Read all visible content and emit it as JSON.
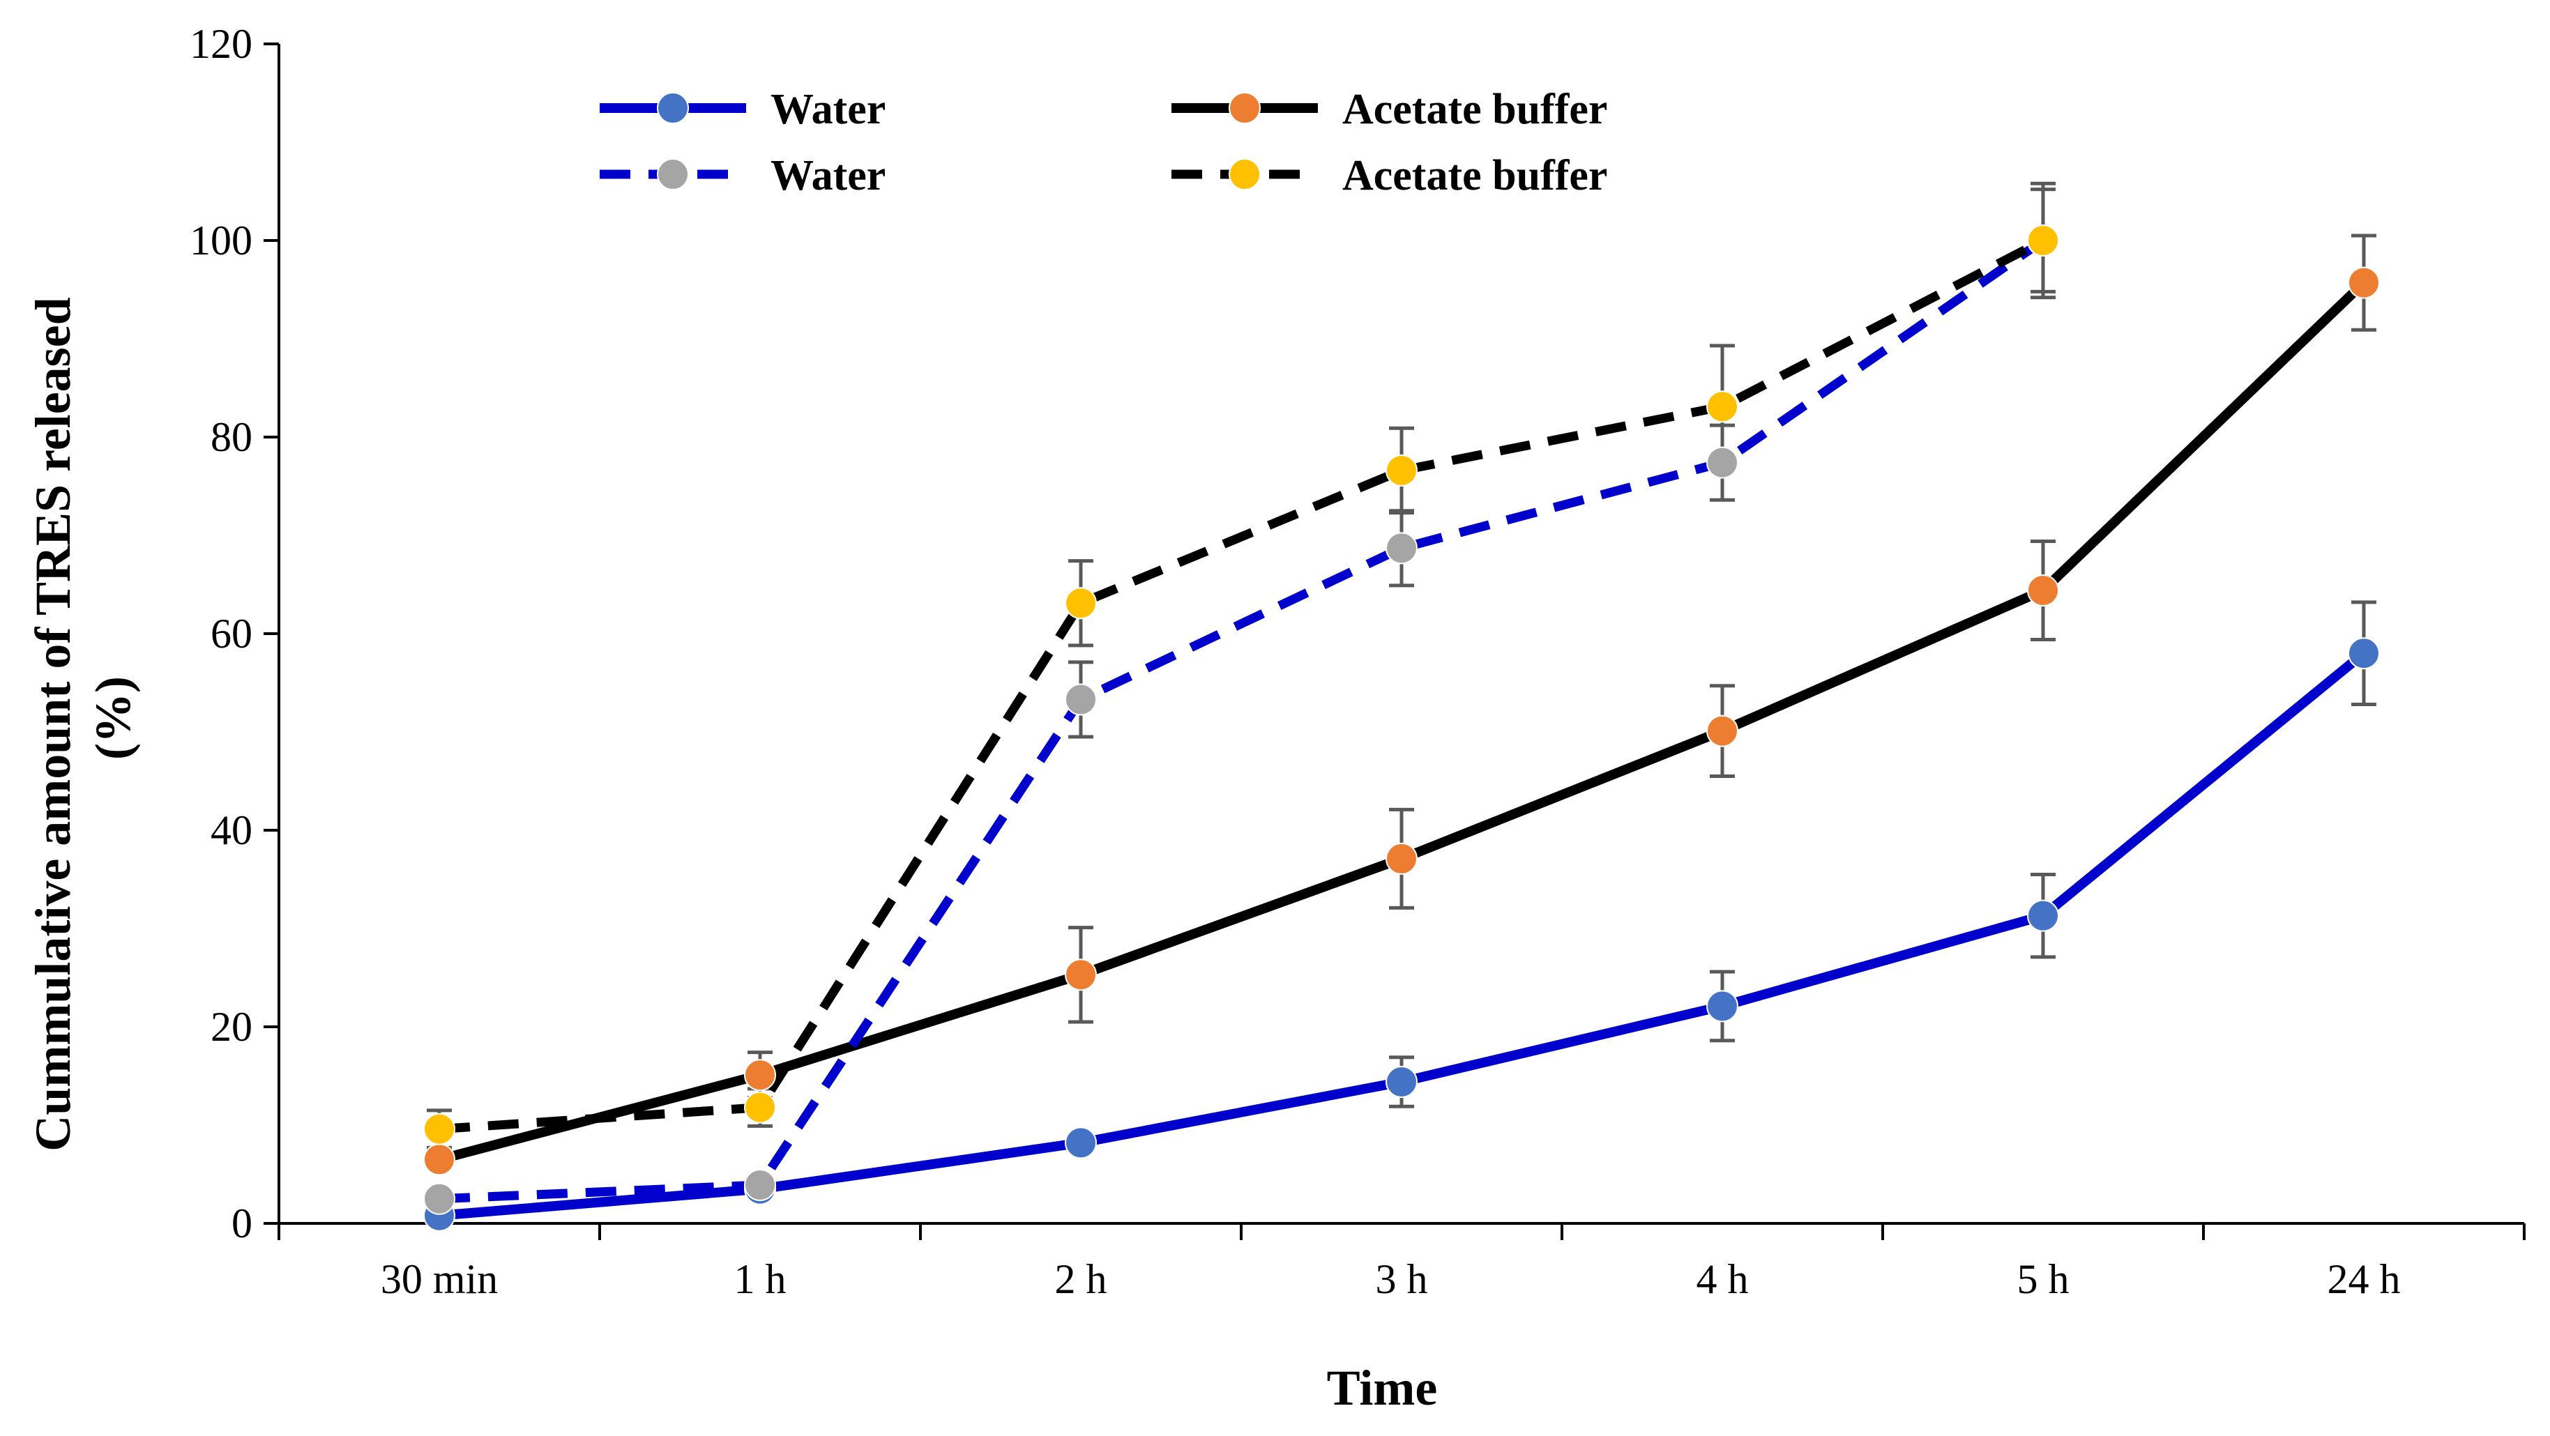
{
  "chart_data": {
    "type": "line",
    "title": "",
    "xlabel": "Time",
    "ylabel_line1": "Cummulative amount of TRES released",
    "ylabel_line2": "(%)",
    "categories": [
      "30 min",
      "1 h",
      "2 h",
      "3 h",
      "4 h",
      "5 h",
      "24 h"
    ],
    "ylim": [
      0,
      120
    ],
    "yticks": [
      0,
      20,
      40,
      60,
      80,
      100,
      120
    ],
    "grid": false,
    "legend_position": "top-left",
    "series": [
      {
        "name": "Water",
        "style": "solid",
        "line_color": "#0000CC",
        "marker_color": "#4472C4",
        "values": [
          0.8,
          3.5,
          8.2,
          14.4,
          22.1,
          31.3,
          58.0
        ],
        "errors": [
          0.5,
          0.5,
          0.8,
          2.5,
          3.5,
          4.2,
          5.2
        ]
      },
      {
        "name": "Acetate buffer",
        "style": "solid",
        "line_color": "#000000",
        "marker_color": "#ED7D31",
        "values": [
          6.5,
          15.1,
          25.3,
          37.1,
          50.1,
          64.4,
          95.7
        ],
        "errors": [
          0.8,
          2.3,
          4.8,
          5.0,
          4.6,
          5.0,
          4.8
        ]
      },
      {
        "name": "Water",
        "style": "dashed",
        "line_color": "#0000CC",
        "marker_color": "#A5A5A5",
        "values": [
          2.5,
          3.9,
          53.3,
          68.7,
          77.4,
          100.0,
          null
        ],
        "errors": [
          0.6,
          0.6,
          3.8,
          3.8,
          3.8,
          5.2,
          null
        ]
      },
      {
        "name": "Acetate buffer",
        "style": "dashed",
        "line_color": "#000000",
        "marker_color": "#FFC000",
        "values": [
          9.6,
          11.8,
          63.1,
          76.6,
          83.1,
          100.0,
          null
        ],
        "errors": [
          1.9,
          1.9,
          4.3,
          4.3,
          6.2,
          5.8,
          null
        ]
      }
    ]
  }
}
